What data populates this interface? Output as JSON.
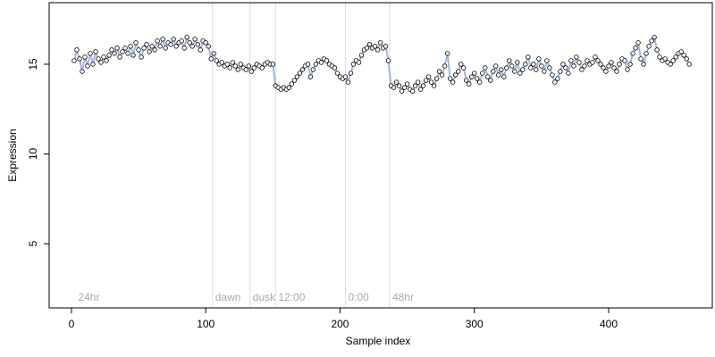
{
  "chart_data": {
    "type": "line",
    "x_label": "Sample index",
    "y_label": "Expression",
    "xlim": [
      -16.6,
      477.2
    ],
    "ylim": [
      1.42,
      18.43
    ],
    "xticks": [
      0,
      100,
      200,
      300,
      400
    ],
    "yticks": [
      5,
      10,
      15
    ],
    "x": [
      2,
      4,
      6,
      8,
      10,
      12,
      14,
      16,
      18,
      20,
      22,
      24,
      26,
      28,
      30,
      32,
      34,
      36,
      38,
      40,
      42,
      44,
      46,
      48,
      50,
      52,
      54,
      56,
      58,
      60,
      62,
      64,
      66,
      68,
      70,
      72,
      74,
      76,
      78,
      80,
      82,
      84,
      86,
      88,
      90,
      92,
      94,
      96,
      98,
      100,
      102,
      104,
      106,
      108,
      110,
      112,
      114,
      116,
      118,
      120,
      122,
      124,
      126,
      128,
      130,
      132,
      134,
      136,
      138,
      140,
      142,
      144,
      146,
      148,
      150,
      152,
      154,
      156,
      158,
      160,
      162,
      164,
      166,
      168,
      170,
      172,
      174,
      176,
      178,
      180,
      182,
      184,
      186,
      188,
      190,
      192,
      194,
      196,
      198,
      200,
      202,
      204,
      206,
      208,
      210,
      212,
      214,
      216,
      218,
      220,
      222,
      224,
      226,
      228,
      230,
      232,
      234,
      236,
      238,
      240,
      242,
      244,
      246,
      248,
      250,
      252,
      254,
      256,
      258,
      260,
      262,
      264,
      266,
      268,
      270,
      272,
      274,
      276,
      278,
      280,
      282,
      284,
      286,
      288,
      290,
      292,
      294,
      296,
      298,
      300,
      302,
      304,
      306,
      308,
      310,
      312,
      314,
      316,
      318,
      320,
      322,
      324,
      326,
      328,
      330,
      332,
      334,
      336,
      338,
      340,
      342,
      344,
      346,
      348,
      350,
      352,
      354,
      356,
      358,
      360,
      362,
      364,
      366,
      368,
      370,
      372,
      374,
      376,
      378,
      380,
      382,
      384,
      386,
      388,
      390,
      392,
      394,
      396,
      398,
      400,
      402,
      404,
      406,
      408,
      410,
      412,
      414,
      416,
      418,
      420,
      422,
      424,
      426,
      428,
      430,
      432,
      434,
      436,
      438,
      440,
      442,
      444,
      446,
      448,
      450,
      452,
      454,
      456,
      458,
      460
    ],
    "series": [
      {
        "color": "#9fb6dc",
        "marker_fill": "#ffffff",
        "marker_edge": "#000000",
        "values": [
          15.2,
          15.8,
          15.3,
          14.6,
          15.4,
          14.9,
          15.6,
          15.0,
          15.7,
          15.3,
          15.1,
          15.4,
          15.2,
          15.5,
          15.8,
          15.6,
          15.9,
          15.4,
          15.7,
          15.9,
          15.6,
          16.0,
          15.5,
          16.2,
          15.8,
          15.4,
          15.9,
          16.1,
          15.7,
          16.0,
          15.8,
          16.3,
          16.0,
          16.4,
          15.9,
          16.2,
          16.1,
          16.4,
          16.0,
          16.2,
          16.3,
          15.9,
          16.5,
          16.2,
          16.0,
          16.4,
          16.1,
          15.8,
          16.3,
          16.2,
          16.0,
          15.3,
          15.6,
          15.2,
          15.0,
          15.1,
          14.9,
          15.0,
          14.8,
          15.1,
          14.9,
          14.7,
          15.0,
          14.8,
          14.7,
          14.9,
          14.6,
          14.8,
          15.0,
          14.9,
          14.8,
          15.0,
          15.1,
          15.0,
          15.0,
          13.8,
          13.7,
          13.6,
          13.7,
          13.6,
          13.7,
          13.9,
          14.1,
          14.3,
          14.5,
          14.7,
          14.9,
          15.0,
          14.3,
          14.7,
          15.0,
          15.2,
          15.1,
          15.3,
          15.2,
          15.0,
          14.9,
          14.8,
          14.5,
          14.3,
          14.2,
          14.3,
          14.0,
          14.5,
          15.0,
          15.2,
          15.1,
          15.5,
          15.8,
          15.9,
          16.1,
          15.9,
          16.0,
          15.8,
          16.2,
          15.9,
          16.0,
          15.2,
          13.8,
          13.7,
          14.0,
          13.8,
          13.5,
          13.7,
          13.9,
          13.6,
          13.5,
          13.8,
          14.0,
          13.6,
          13.8,
          14.1,
          14.3,
          14.0,
          13.8,
          14.2,
          14.6,
          14.4,
          14.9,
          15.6,
          14.2,
          14.0,
          14.4,
          14.6,
          15.0,
          14.8,
          14.1,
          13.9,
          14.3,
          14.5,
          14.2,
          14.0,
          14.5,
          14.8,
          14.3,
          14.1,
          14.6,
          14.9,
          14.4,
          14.7,
          14.3,
          14.8,
          15.2,
          14.9,
          14.6,
          15.1,
          14.5,
          14.7,
          15.0,
          15.4,
          14.8,
          15.0,
          14.7,
          15.3,
          14.9,
          14.6,
          15.2,
          14.8,
          14.4,
          14.0,
          14.2,
          14.6,
          15.0,
          14.8,
          14.5,
          15.2,
          14.9,
          15.4,
          15.1,
          14.7,
          14.9,
          15.2,
          15.0,
          15.1,
          15.4,
          15.2,
          15.0,
          14.8,
          14.6,
          14.9,
          15.1,
          14.8,
          14.6,
          15.0,
          15.3,
          15.2,
          14.7,
          15.0,
          15.6,
          15.9,
          16.2,
          15.3,
          15.0,
          15.6,
          16.0,
          16.3,
          16.5,
          15.8,
          15.4,
          15.2,
          15.3,
          15.1,
          15.0,
          15.2,
          15.4,
          15.6,
          15.7,
          15.5,
          15.3,
          15.0
        ]
      }
    ],
    "annotations": [
      {
        "x": 3,
        "label": "24hr",
        "line": false
      },
      {
        "x": 105,
        "label": "dawn",
        "line": true
      },
      {
        "x": 133,
        "label": "dusk",
        "line": true
      },
      {
        "x": 152,
        "label": "12:00",
        "line": true
      },
      {
        "x": 204,
        "label": "0:00",
        "line": true
      },
      {
        "x": 237,
        "label": "48hr",
        "line": true
      }
    ]
  }
}
